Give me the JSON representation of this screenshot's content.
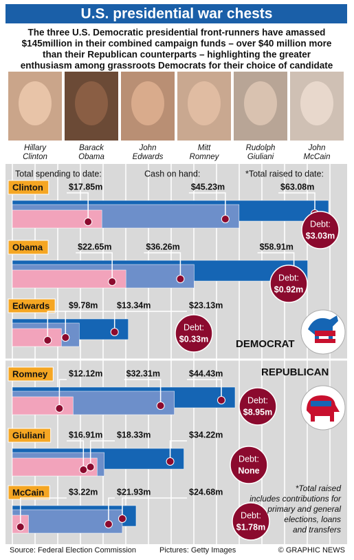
{
  "chart_data": {
    "type": "bar",
    "title": "U.S. presidential war chests",
    "subtitle": [
      "The three U.S. Democratic presidential front-runners have amassed",
      "$145million in their combined campaign funds – over $40 million more",
      "than their Republican counterparts – highlighting the greater",
      "enthusiasm among grassroots Democrats for their choice of candidate"
    ],
    "photo_captions": [
      [
        "Hillary",
        "Clinton"
      ],
      [
        "Barack",
        "Obama"
      ],
      [
        "John",
        "Edwards"
      ],
      [
        "Mitt",
        "Romney"
      ],
      [
        "Rudolph",
        "Giuliani"
      ],
      [
        "John",
        "McCain"
      ]
    ],
    "categories": [
      "Clinton",
      "Obama",
      "Edwards",
      "Romney",
      "Giuliani",
      "McCain"
    ],
    "series": [
      {
        "name": "Total spending to date:",
        "color": "#f2a3bb",
        "values": [
          17.85,
          22.65,
          9.78,
          12.12,
          16.91,
          3.22
        ],
        "value_labels": [
          "$17.85m",
          "$22.65m",
          "$9.78m",
          "$12.12m",
          "$16.91m",
          "$3.22m"
        ]
      },
      {
        "name": "Cash on hand:",
        "color": "#6d8fca",
        "values": [
          45.23,
          36.26,
          13.34,
          32.31,
          18.33,
          21.93
        ],
        "value_labels": [
          "$45.23m",
          "$36.26m",
          "$13.34m",
          "$32.31m",
          "$18.33m",
          "$21.93m"
        ]
      },
      {
        "name": "*Total raised to date:",
        "color": "#1565b4",
        "values": [
          63.08,
          58.91,
          23.13,
          44.43,
          34.22,
          24.68
        ],
        "value_labels": [
          "$63.08m",
          "$58.91m",
          "$23.13m",
          "$44.43m",
          "$34.22m",
          "$24.68m"
        ]
      }
    ],
    "debt": {
      "label": "Debt:",
      "values": [
        3.03,
        0.92,
        0.33,
        8.95,
        null,
        1.78
      ],
      "value_labels": [
        "$3.03m",
        "$0.92m",
        "$0.33m",
        "$8.95m",
        "None",
        "$1.78m"
      ]
    },
    "party_labels": [
      "DEMOCRAT",
      "REPUBLICAN"
    ],
    "footnote": [
      "*Total raised",
      "includes contributions for",
      "primary and general",
      "elections, loans",
      "and transfers"
    ],
    "source": "Source: Federal Election Commission",
    "pictures": "Pictures: Getty Images",
    "copyright": "© GRAPHIC NEWS"
  }
}
